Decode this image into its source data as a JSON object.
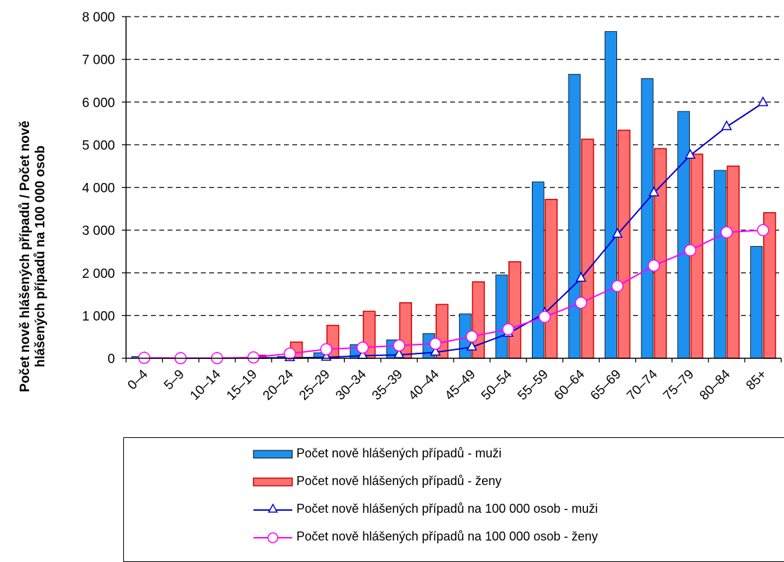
{
  "chart_data": {
    "type": "bar",
    "ylabel": [
      "Počet nově hlášených případů / Počet nově",
      "hlášených případů na 100 000 osob"
    ],
    "ylim": [
      0,
      8000
    ],
    "yticks": [
      0,
      1000,
      2000,
      3000,
      4000,
      5000,
      6000,
      7000,
      8000
    ],
    "ytick_labels": [
      "0",
      "1 000",
      "2 000",
      "3 000",
      "4 000",
      "5 000",
      "6 000",
      "7 000",
      "8 000"
    ],
    "grid": "horizontal dashed",
    "legend_placement": "bottom",
    "categories": [
      "0–4",
      "5–9",
      "10–14",
      "15–19",
      "20–24",
      "25–29",
      "30–34",
      "35–39",
      "40–44",
      "45–49",
      "50–54",
      "55–59",
      "60–64",
      "65–69",
      "70–74",
      "75–79",
      "80–84",
      "85+"
    ],
    "series": [
      {
        "name": "Počet nově hlášených případů - muži",
        "kind": "bar",
        "color": "#1E90F0",
        "values": [
          40,
          5,
          5,
          20,
          40,
          130,
          320,
          430,
          580,
          1040,
          1950,
          4130,
          6650,
          7650,
          6550,
          5780,
          4400,
          2620
        ]
      },
      {
        "name": "Počet nově hlášených případů - ženy",
        "kind": "bar",
        "color": "#FF7070",
        "values": [
          10,
          5,
          5,
          70,
          380,
          770,
          1100,
          1300,
          1260,
          1790,
          2260,
          3720,
          5130,
          5340,
          4910,
          4780,
          4500,
          3410
        ]
      },
      {
        "name": "Počet nově hlášených případů na 100 000 osob - muži",
        "kind": "line",
        "marker": "triangle",
        "color": "#0000CC",
        "values": [
          10,
          2,
          2,
          10,
          10,
          20,
          60,
          80,
          140,
          260,
          580,
          1050,
          1870,
          2900,
          3870,
          4750,
          5420,
          5980
        ]
      },
      {
        "name": "Počet nově hlášených případů na 100 000 osob - ženy",
        "kind": "line",
        "marker": "circle",
        "color": "#FF00FF",
        "values": [
          10,
          2,
          2,
          20,
          110,
          210,
          250,
          300,
          340,
          510,
          680,
          970,
          1300,
          1690,
          2170,
          2530,
          2950,
          3000
        ]
      }
    ]
  }
}
